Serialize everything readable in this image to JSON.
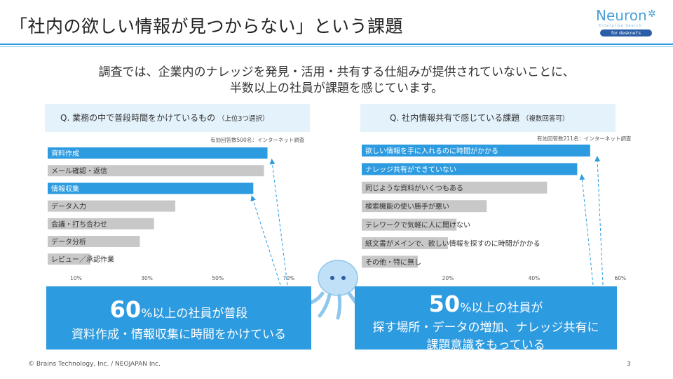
{
  "title": "「社内の欲しい情報が見つからない」という課題",
  "logo": {
    "word": "Neuron",
    "sub": "Enterprise Search",
    "tag": "for desknet's"
  },
  "lead": [
    "調査では、企業内のナレッジを発見・活用・共有する仕組みが提供されていないことに、",
    "半数以上の社員が課題を感じています。"
  ],
  "colors": {
    "accent": "#2d9be0",
    "muted": "#c8c8c8",
    "header_bg": "#e4f2fb"
  },
  "chart_data": [
    {
      "type": "bar",
      "orientation": "horizontal",
      "title": "Q. 業務の中で普段時間をかけているもの",
      "subtitle": "（上位3つ選択）",
      "note": "有効回答数500名：インターネット調査",
      "categories": [
        "資料作成",
        "メール確認・返信",
        "情報収集",
        "データ入力",
        "会議・打ち合わせ",
        "データ分析",
        "レビュー／承認作業"
      ],
      "values": [
        64,
        63,
        60,
        38,
        32,
        28,
        14
      ],
      "highlight": [
        true,
        false,
        true,
        false,
        false,
        false,
        false
      ],
      "xticks": [
        10,
        30,
        50,
        70
      ],
      "tick_labels": [
        "10%",
        "30%",
        "50%",
        "70%"
      ],
      "xlim": [
        2,
        72
      ]
    },
    {
      "type": "bar",
      "orientation": "horizontal",
      "title": "Q. 社内情報共有で感じている課題",
      "subtitle": "（複数回答可）",
      "note": "有効回答数211名：インターネット調査",
      "categories": [
        "欲しい情報を手に入れるのに時間がかかる",
        "ナレッジ共有ができていない",
        "同じような資料がいくつもある",
        "検索機能の使い勝手が悪い",
        "テレワークで気軽に人に聞けない",
        "紙文書がメインで、欲しい情報を探すのに時間がかかる",
        "その他・特に無し"
      ],
      "values": [
        53,
        50,
        43,
        29,
        22,
        20,
        13
      ],
      "highlight": [
        true,
        true,
        false,
        false,
        false,
        false,
        false
      ],
      "xticks": [
        20,
        40,
        60
      ],
      "tick_labels": [
        "20%",
        "40%",
        "60%"
      ],
      "xlim": [
        0,
        61
      ]
    }
  ],
  "callouts": [
    {
      "big": "60",
      "rest": "%以上の社員が普段",
      "line2": "資料作成・情報収集に時間をかけている"
    },
    {
      "big": "50",
      "rest": "%以上の社員が",
      "line2": "探す場所・データの増加、ナレッジ共有に",
      "line3": "課題意識をもっている"
    }
  ],
  "footer": "© Brains Technology, Inc. / NEOJAPAN Inc.",
  "page_number": "3"
}
